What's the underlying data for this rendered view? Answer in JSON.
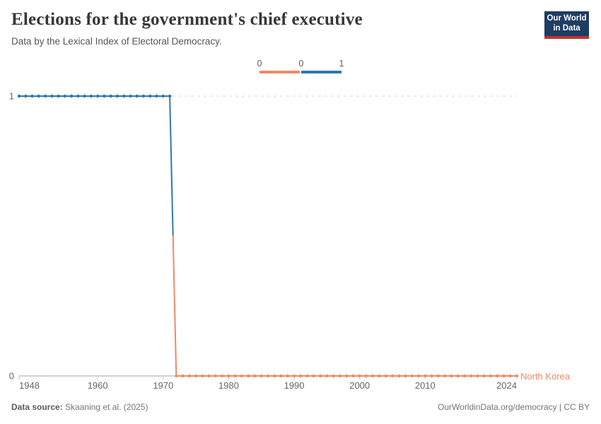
{
  "header": {
    "title": "Elections for the government's chief executive",
    "subtitle": "Data by the Lexical Index of Electoral Democracy.",
    "logo": {
      "line1": "Our World",
      "line2": "in Data",
      "bg_color": "#1D3D63",
      "accent_color": "#BE352C"
    }
  },
  "legend": {
    "tick_labels": [
      "0",
      "0",
      "1"
    ],
    "segments": [
      {
        "value": "0",
        "color": "#EE8A66"
      },
      {
        "value": "1",
        "color": "#3077AF"
      }
    ]
  },
  "chart_data": {
    "type": "line",
    "title": "Elections for the government's chief executive",
    "subtitle": "Data by the Lexical Index of Electoral Democracy.",
    "entity": "North Korea",
    "xlabel": "",
    "ylabel": "",
    "xlim": [
      1948,
      2024
    ],
    "ylim": [
      0,
      1
    ],
    "x_ticks": [
      1948,
      1960,
      1970,
      1980,
      1990,
      2000,
      2010,
      2024
    ],
    "y_ticks": [
      0,
      1
    ],
    "grid": "dashed gridline at y=1, solid axis at y=0",
    "legend_position": "top-center",
    "value_colors": {
      "0": "#EE8A66",
      "1": "#3077AF"
    },
    "series": [
      {
        "name": "North Korea",
        "x": [
          1948,
          1949,
          1950,
          1951,
          1952,
          1953,
          1954,
          1955,
          1956,
          1957,
          1958,
          1959,
          1960,
          1961,
          1962,
          1963,
          1964,
          1965,
          1966,
          1967,
          1968,
          1969,
          1970,
          1971,
          1972,
          1973,
          1974,
          1975,
          1976,
          1977,
          1978,
          1979,
          1980,
          1981,
          1982,
          1983,
          1984,
          1985,
          1986,
          1987,
          1988,
          1989,
          1990,
          1991,
          1992,
          1993,
          1994,
          1995,
          1996,
          1997,
          1998,
          1999,
          2000,
          2001,
          2002,
          2003,
          2004,
          2005,
          2006,
          2007,
          2008,
          2009,
          2010,
          2011,
          2012,
          2013,
          2014,
          2015,
          2016,
          2017,
          2018,
          2019,
          2020,
          2021,
          2022,
          2023,
          2024
        ],
        "values": [
          1,
          1,
          1,
          1,
          1,
          1,
          1,
          1,
          1,
          1,
          1,
          1,
          1,
          1,
          1,
          1,
          1,
          1,
          1,
          1,
          1,
          1,
          1,
          1,
          0,
          0,
          0,
          0,
          0,
          0,
          0,
          0,
          0,
          0,
          0,
          0,
          0,
          0,
          0,
          0,
          0,
          0,
          0,
          0,
          0,
          0,
          0,
          0,
          0,
          0,
          0,
          0,
          0,
          0,
          0,
          0,
          0,
          0,
          0,
          0,
          0,
          0,
          0,
          0,
          0,
          0,
          0,
          0,
          0,
          0,
          0,
          0,
          0,
          0,
          0,
          0,
          0
        ]
      }
    ]
  },
  "footer": {
    "source_label": "Data source:",
    "source_value": "Skaaning et al. (2025)",
    "credit": "OurWorldinData.org/democracy | CC BY"
  }
}
